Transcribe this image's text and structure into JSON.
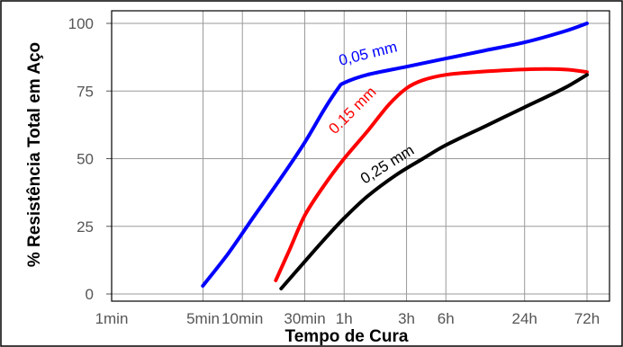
{
  "chart_data": {
    "type": "line",
    "xlabel": "Tempo de Cura",
    "ylabel": "% Resistência Total em Aço",
    "x_scale": "log",
    "x_unit": "hours",
    "x_ticks": [
      {
        "label": "1min",
        "hours": 0.016667
      },
      {
        "label": "5min",
        "hours": 0.083333
      },
      {
        "label": "10min",
        "hours": 0.166667
      },
      {
        "label": "30min",
        "hours": 0.5
      },
      {
        "label": "1h",
        "hours": 1
      },
      {
        "label": "3h",
        "hours": 3
      },
      {
        "label": "6h",
        "hours": 6
      },
      {
        "label": "24h",
        "hours": 24
      },
      {
        "label": "72h",
        "hours": 72
      }
    ],
    "y_ticks": [
      0,
      25,
      50,
      75,
      100
    ],
    "ylim": [
      0,
      100
    ],
    "grid": true,
    "series": [
      {
        "name": "0,05 mm",
        "color": "#0000ff",
        "points": [
          [
            0.083,
            3
          ],
          [
            0.13,
            15
          ],
          [
            0.2,
            28
          ],
          [
            0.33,
            43
          ],
          [
            0.5,
            56
          ],
          [
            0.7,
            68
          ],
          [
            0.9,
            76
          ],
          [
            1.0,
            78
          ],
          [
            1.5,
            81
          ],
          [
            3,
            84
          ],
          [
            6,
            87
          ],
          [
            12,
            90
          ],
          [
            24,
            93
          ],
          [
            48,
            97
          ],
          [
            72,
            100
          ]
        ]
      },
      {
        "name": "0.15 mm",
        "color": "#ff0000",
        "points": [
          [
            0.3,
            5
          ],
          [
            0.38,
            16
          ],
          [
            0.5,
            29
          ],
          [
            0.7,
            40
          ],
          [
            1.0,
            50
          ],
          [
            1.5,
            60
          ],
          [
            2.2,
            70
          ],
          [
            3,
            76
          ],
          [
            4,
            79
          ],
          [
            6,
            81
          ],
          [
            10,
            82
          ],
          [
            24,
            83
          ],
          [
            48,
            83
          ],
          [
            72,
            82
          ]
        ]
      },
      {
        "name": "0,25 mm",
        "color": "#000000",
        "points": [
          [
            0.33,
            2
          ],
          [
            0.5,
            12
          ],
          [
            0.7,
            20
          ],
          [
            1.0,
            28
          ],
          [
            1.5,
            36
          ],
          [
            2.5,
            44
          ],
          [
            4,
            50
          ],
          [
            6,
            55
          ],
          [
            12,
            62
          ],
          [
            24,
            69
          ],
          [
            48,
            76
          ],
          [
            72,
            81
          ]
        ]
      }
    ]
  }
}
